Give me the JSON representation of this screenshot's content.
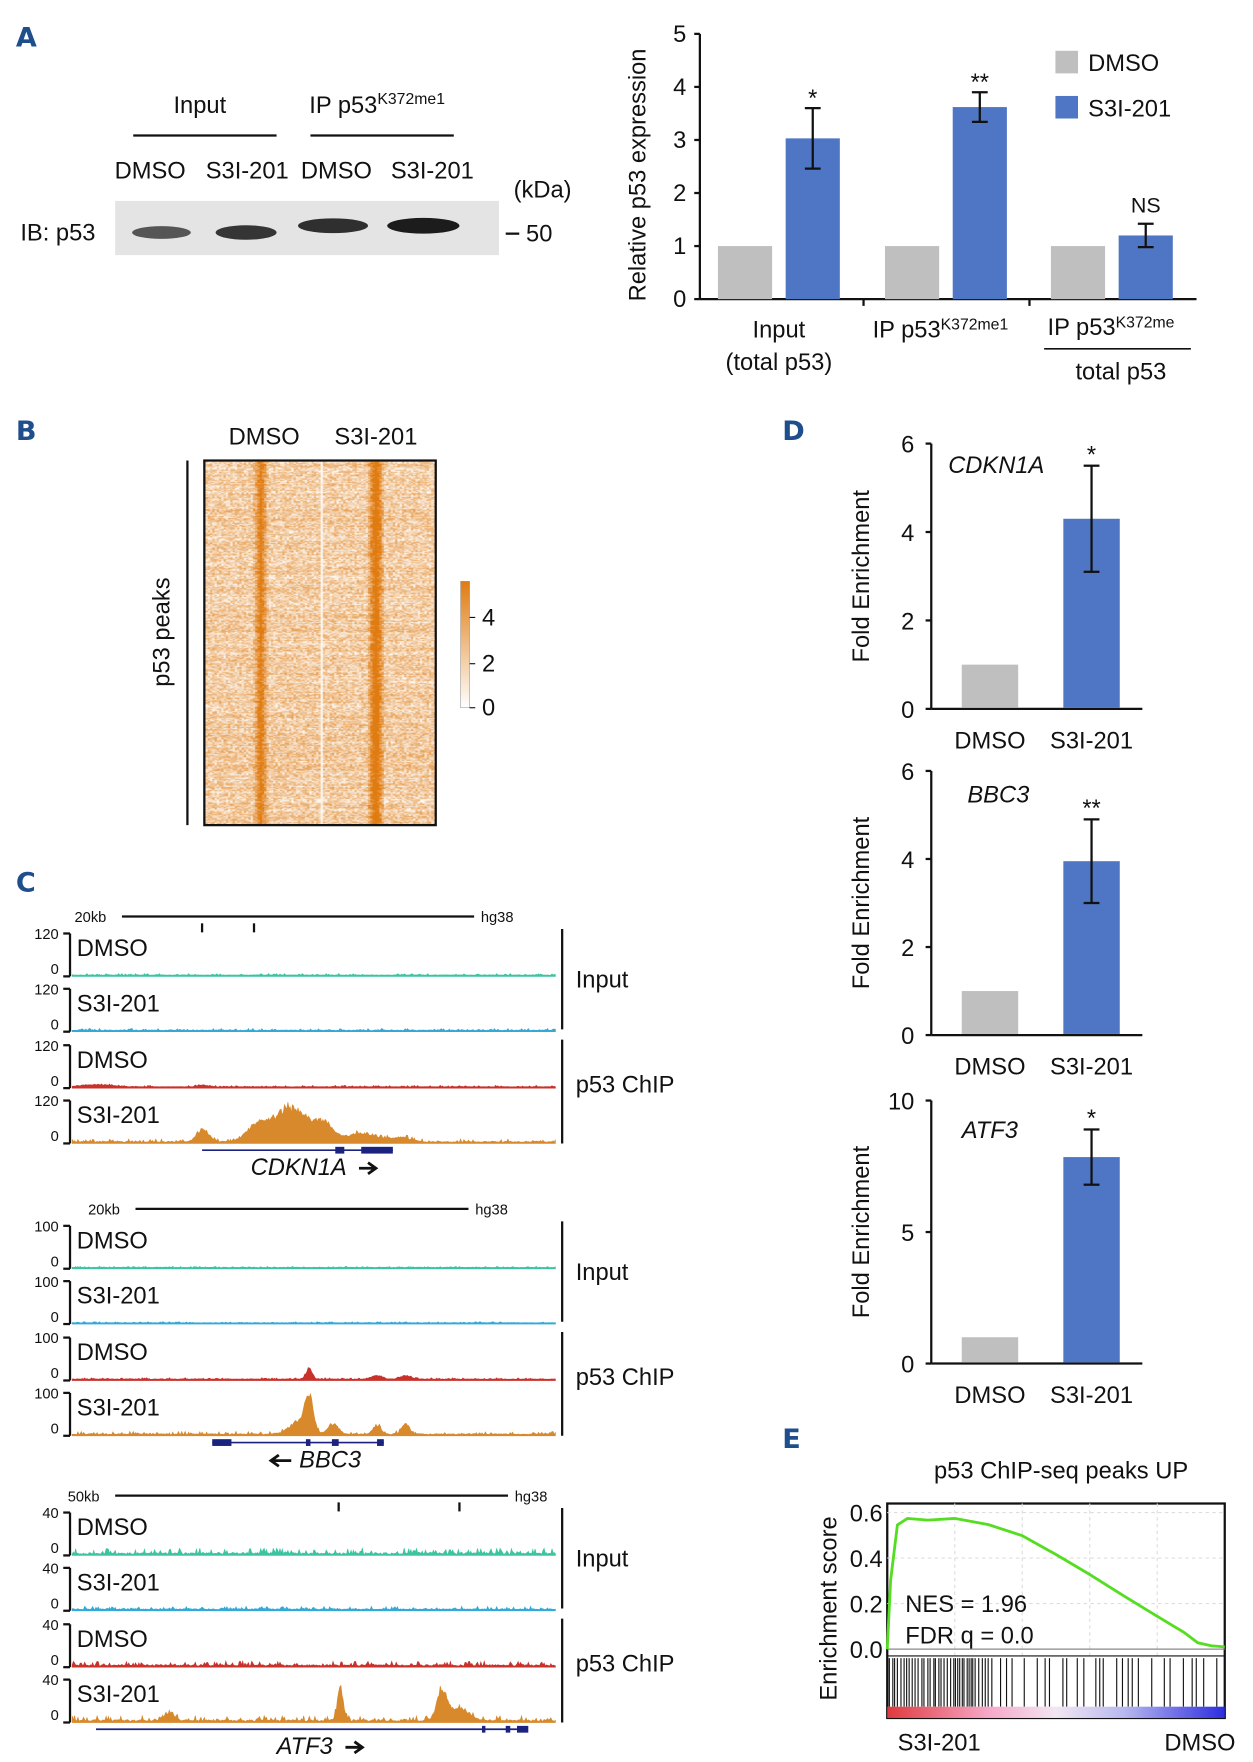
{
  "panel_letters": {
    "a": "A",
    "b": "B",
    "c": "C",
    "d": "D",
    "e": "E"
  },
  "blot": {
    "group_input": "Input",
    "group_ip": "IP p53",
    "group_ip_sup": "K372me1",
    "lanes": [
      "DMSO",
      "S3I-201",
      "DMSO",
      "S3I-201"
    ],
    "kda_label": "(kDa)",
    "marker": "50",
    "ib_label": "IB: p53",
    "band_intensity": [
      0.55,
      0.8,
      0.85,
      1.0
    ]
  },
  "chart_data": [
    {
      "id": "A",
      "type": "bar",
      "ylabel": "Relative p53 expression",
      "ylim": [
        0,
        5
      ],
      "yticks": [
        "0",
        "1",
        "2",
        "3",
        "4",
        "5"
      ],
      "categories": [
        {
          "line1": "Input",
          "line2": "(total p53)"
        },
        {
          "line1": "IP p53",
          "sup": "K372me1"
        },
        {
          "line1": "IP p53",
          "sup": "K372me",
          "line2": "total p53"
        }
      ],
      "series": [
        {
          "name": "DMSO",
          "color": "#bfbfbf",
          "values": [
            1,
            1,
            1
          ]
        },
        {
          "name": "S3I-201",
          "color": "#4f76c4",
          "values": [
            3.03,
            3.62,
            1.2
          ],
          "errors": [
            0.57,
            0.28,
            0.22
          ]
        }
      ],
      "significance": [
        "*",
        "**",
        "NS"
      ],
      "legend": "top-right"
    },
    {
      "id": "B",
      "type": "heatmap",
      "columns": [
        "DMSO",
        "S3I-201"
      ],
      "row_label": "p53 peaks",
      "colorbar_ticks": [
        "4",
        "2",
        "0"
      ],
      "color_range": [
        0,
        4
      ],
      "colors": {
        "low": "#ffffff",
        "high": "#e07b10"
      }
    },
    {
      "id": "D1",
      "type": "bar",
      "title": "CDKN1A",
      "ylabel": "Fold Enrichment",
      "ylim": [
        0,
        6
      ],
      "yticks": [
        "0",
        "2",
        "4",
        "6"
      ],
      "categories": [
        "DMSO",
        "S3I-201"
      ],
      "values": [
        1,
        4.3
      ],
      "errors": [
        0,
        1.2
      ],
      "colors": [
        "#bfbfbf",
        "#4f76c4"
      ],
      "significance": "*"
    },
    {
      "id": "D2",
      "type": "bar",
      "title": "BBC3",
      "ylabel": "Fold Enrichment",
      "ylim": [
        0,
        6
      ],
      "yticks": [
        "0",
        "2",
        "4",
        "6"
      ],
      "categories": [
        "DMSO",
        "S3I-201"
      ],
      "values": [
        1,
        3.95
      ],
      "errors": [
        0,
        0.95
      ],
      "colors": [
        "#bfbfbf",
        "#4f76c4"
      ],
      "significance": "**"
    },
    {
      "id": "D3",
      "type": "bar",
      "title": "ATF3",
      "ylabel": "Fold Enrichment",
      "ylim": [
        0,
        10
      ],
      "yticks": [
        "0",
        "5",
        "10"
      ],
      "categories": [
        "DMSO",
        "S3I-201"
      ],
      "values": [
        1,
        7.85
      ],
      "errors": [
        0,
        1.05
      ],
      "colors": [
        "#bfbfbf",
        "#4f76c4"
      ],
      "significance": "*"
    },
    {
      "id": "E",
      "type": "line",
      "title": "p53 ChIP-seq peaks UP",
      "ylabel": "Enrichment score",
      "ylim": [
        0,
        0.6
      ],
      "yticks": [
        "0.6",
        "0.4",
        "0.2",
        "0.0"
      ],
      "x_left_label": "S3I-201",
      "x_right_label": "DMSO",
      "nes": "NES = 1.96",
      "fdr": "FDR q = 0.0",
      "curve": [
        [
          0,
          0
        ],
        [
          0.01,
          0.3
        ],
        [
          0.03,
          0.55
        ],
        [
          0.06,
          0.57
        ],
        [
          0.12,
          0.57
        ],
        [
          0.2,
          0.57
        ],
        [
          0.3,
          0.55
        ],
        [
          0.4,
          0.5
        ],
        [
          0.5,
          0.42
        ],
        [
          0.6,
          0.33
        ],
        [
          0.7,
          0.23
        ],
        [
          0.8,
          0.14
        ],
        [
          0.88,
          0.07
        ],
        [
          0.92,
          0.03
        ],
        [
          0.96,
          0.01
        ],
        [
          1,
          0.01
        ]
      ],
      "line_color": "#55dd22"
    }
  ],
  "tracks": {
    "ref": "hg38",
    "group_labels": [
      "Input",
      "p53 ChIP"
    ],
    "track_labels": [
      "DMSO",
      "S3I-201",
      "DMSO",
      "S3I-201"
    ],
    "track_colors": [
      "#3cc4a0",
      "#35a8d6",
      "#c8322a",
      "#d8892c"
    ],
    "loci": [
      {
        "scale": "20kb",
        "ymax": "120",
        "gene": "CDKN1A",
        "strand": "+"
      },
      {
        "scale": "20kb",
        "ymax": "100",
        "gene": "BBC3",
        "strand": "-"
      },
      {
        "scale": "50kb",
        "ymax": "40",
        "gene": "ATF3",
        "strand": "+"
      }
    ],
    "ymin": "0"
  }
}
